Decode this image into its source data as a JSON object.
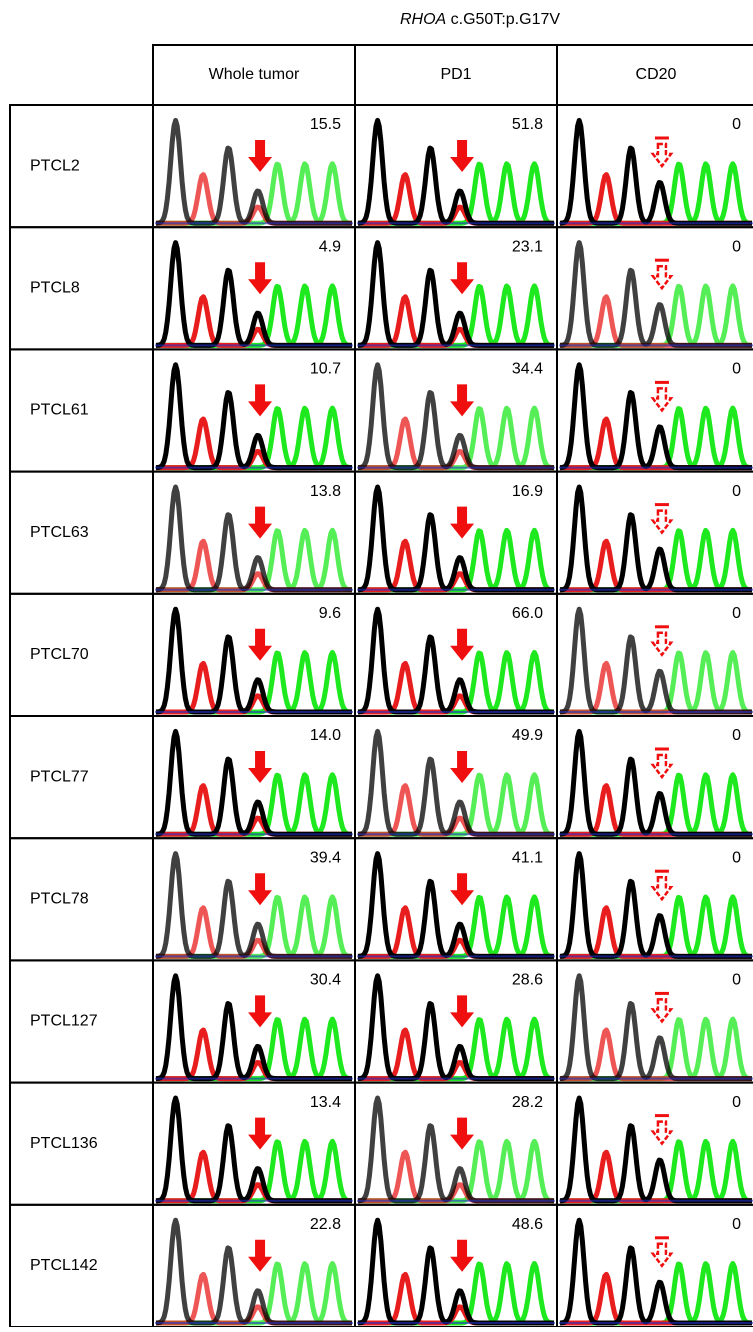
{
  "title": {
    "gene": "RHOA",
    "mutation": "c.G50T:p.G17V"
  },
  "columns": [
    "Whole tumor",
    "PD1",
    "CD20"
  ],
  "rows": [
    {
      "label": "PTCL2",
      "values": [
        "15.5",
        "51.8",
        "0"
      ]
    },
    {
      "label": "PTCL8",
      "values": [
        "4.9",
        "23.1",
        "0"
      ]
    },
    {
      "label": "PTCL61",
      "values": [
        "10.7",
        "34.4",
        "0"
      ]
    },
    {
      "label": "PTCL63",
      "values": [
        "13.8",
        "16.9",
        "0"
      ]
    },
    {
      "label": "PTCL70",
      "values": [
        "9.6",
        "66.0",
        "0"
      ]
    },
    {
      "label": "PTCL77",
      "values": [
        "14.0",
        "49.9",
        "0"
      ]
    },
    {
      "label": "PTCL78",
      "values": [
        "39.4",
        "41.1",
        "0"
      ]
    },
    {
      "label": "PTCL127",
      "values": [
        "30.4",
        "28.6",
        "0"
      ]
    },
    {
      "label": "PTCL136",
      "values": [
        "13.4",
        "28.2",
        "0"
      ]
    },
    {
      "label": "PTCL142",
      "values": [
        "22.8",
        "48.6",
        "0"
      ]
    }
  ]
}
